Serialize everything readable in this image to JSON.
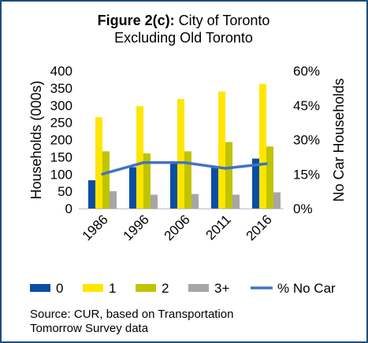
{
  "chart_data": {
    "type": "bar",
    "title_bold": "Figure 2(c):",
    "title_rest": " City of Toronto",
    "title_line2": "Excluding Old Toronto",
    "ylabel": "Households (000s)",
    "y2label": "No Car Households",
    "categories": [
      "1986",
      "1996",
      "2006",
      "2011",
      "2016"
    ],
    "ylim": [
      0,
      400
    ],
    "yticks": [
      "0",
      "50",
      "100",
      "150",
      "200",
      "250",
      "300",
      "350",
      "400"
    ],
    "y2lim": [
      0,
      60
    ],
    "y2ticks": [
      "0%",
      "15%",
      "30%",
      "45%",
      "60%"
    ],
    "series": [
      {
        "name": "0",
        "color": "#0a4ea3",
        "values": [
          82,
          120,
          135,
          120,
          145
        ]
      },
      {
        "name": "1",
        "color": "#ffe600",
        "values": [
          265,
          297,
          318,
          340,
          362
        ]
      },
      {
        "name": "2",
        "color": "#bfc400",
        "values": [
          166,
          160,
          166,
          193,
          180
        ]
      },
      {
        "name": "3+",
        "color": "#a6a6a6",
        "values": [
          50,
          40,
          42,
          40,
          47
        ]
      }
    ],
    "line_series": {
      "name": "% No Car",
      "color": "#4472c4",
      "values": [
        15,
        20,
        20,
        17.5,
        19.5
      ]
    },
    "legend_position": "bottom",
    "grid": false,
    "source": [
      "Source: CUR, based on Transportation",
      "Tomorrow Survey data"
    ]
  }
}
